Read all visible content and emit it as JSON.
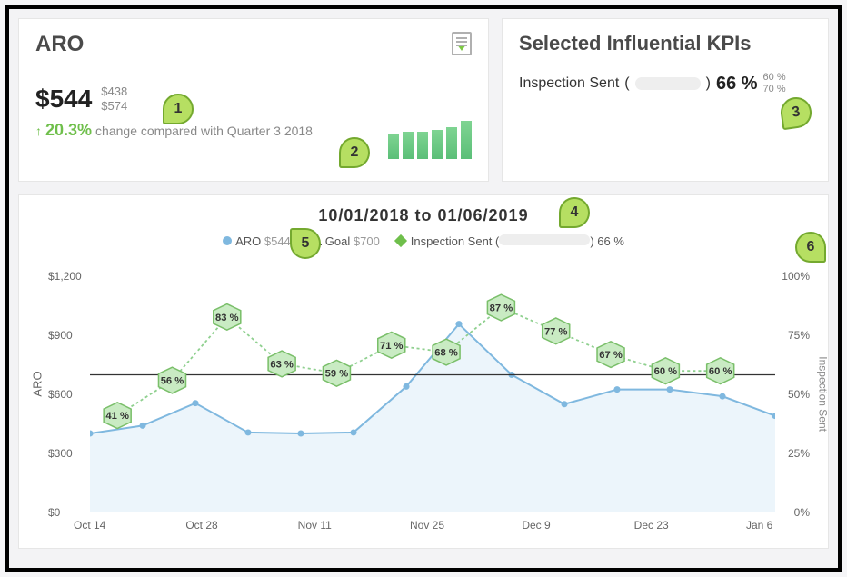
{
  "aro_card": {
    "title": "ARO",
    "value": "$544",
    "comp_high": "$438",
    "comp_low": "$574",
    "change_pct": "20.3%",
    "change_dir": "↑",
    "change_label": "change compared with Quarter 3 2018",
    "mini_bars": [
      28,
      30,
      30,
      32,
      35,
      42
    ]
  },
  "kpi_card": {
    "title": "Selected Influential KPIs",
    "label": "Inspection Sent",
    "value": "66 %",
    "range_high": "60 %",
    "range_low": "70 %"
  },
  "callouts": {
    "c1": "1",
    "c2": "2",
    "c3": "3",
    "c4": "4",
    "c5": "5",
    "c6": "6"
  },
  "chart": {
    "title": "10/01/2018 to 01/06/2019",
    "legend": {
      "aro_label": "ARO",
      "aro_value": "$544",
      "goal_label": "Goal",
      "goal_value": "$700",
      "insp_label": "Inspection Sent (",
      "insp_close": ") 66 %"
    },
    "y_left": {
      "label": "ARO",
      "min": 0,
      "max": 1200,
      "ticks": [
        "$0",
        "$300",
        "$600",
        "$900",
        "$1,200"
      ]
    },
    "y_right": {
      "label": "Inspection Sent",
      "min": 0,
      "max": 100,
      "ticks": [
        "0%",
        "25%",
        "50%",
        "75%",
        "100%"
      ]
    },
    "x_ticks": [
      "Oct 14",
      "Oct 28",
      "Nov 11",
      "Nov 25",
      "Dec 9",
      "Dec 23",
      "Jan 6"
    ],
    "goal": 700,
    "aro_points": [
      400,
      440,
      555,
      405,
      400,
      405,
      640,
      960,
      700,
      550,
      625,
      625,
      590,
      490
    ],
    "insp_points": [
      41,
      56,
      83,
      63,
      59,
      71,
      68,
      87,
      77,
      67,
      60,
      60
    ],
    "insp_labels": [
      "41 %",
      "56 %",
      "83 %",
      "63 %",
      "59 %",
      "71 %",
      "68 %",
      "87 %",
      "77 %",
      "67 %",
      "60 %",
      "60 %"
    ],
    "colors": {
      "aro_line": "#7fb8df",
      "aro_fill": "#eaf4fb",
      "goal_line": "#333333",
      "insp_line": "#8fd08f",
      "hex_fill": "#c9ebc3",
      "hex_stroke": "#7abf6a",
      "callout_fill": "#b6df62",
      "callout_stroke": "#74a92f"
    }
  }
}
